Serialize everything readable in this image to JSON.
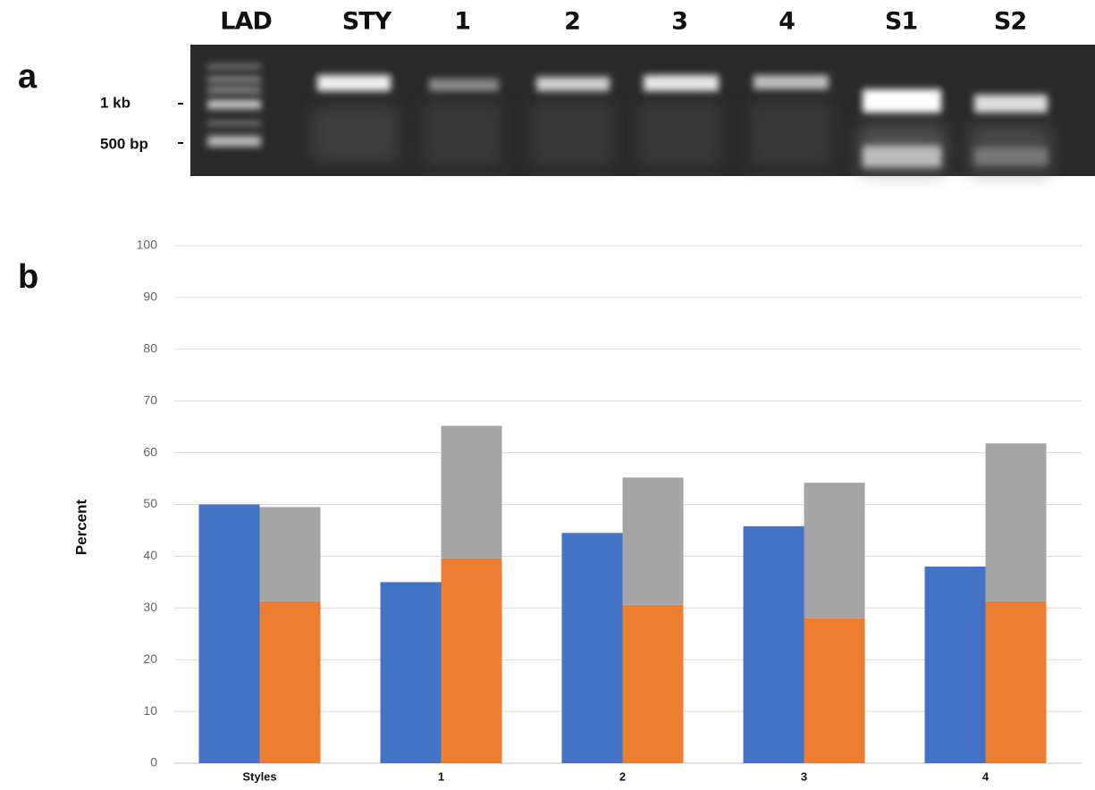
{
  "panel_labels": [
    "a",
    "b"
  ],
  "gel": {
    "lanes": [
      "LAD",
      "STY",
      "1",
      "2",
      "3",
      "4",
      "S1",
      "S2"
    ],
    "size_markers": [
      "1 kb",
      "500 bp"
    ]
  },
  "chart_data": {
    "type": "bar",
    "y_label": "Percent",
    "categories": [
      "Styles",
      "1",
      "2",
      "3",
      "4"
    ],
    "series": [
      {
        "color": "#4472c4",
        "group": 0,
        "values": [
          50,
          35,
          44.5,
          45.8,
          38
        ]
      },
      {
        "color": "#ed7d31",
        "group": 1,
        "values": [
          31.3,
          39.6,
          30.6,
          28,
          31.3
        ]
      },
      {
        "color": "#a5a5a5",
        "group": 1,
        "values": [
          18.2,
          25.6,
          24.6,
          26.2,
          30.5
        ]
      }
    ],
    "ylim": [
      0,
      100
    ],
    "yticks": [
      0,
      10,
      20,
      30,
      40,
      50,
      60,
      70,
      80,
      90,
      100
    ],
    "grid": true
  }
}
